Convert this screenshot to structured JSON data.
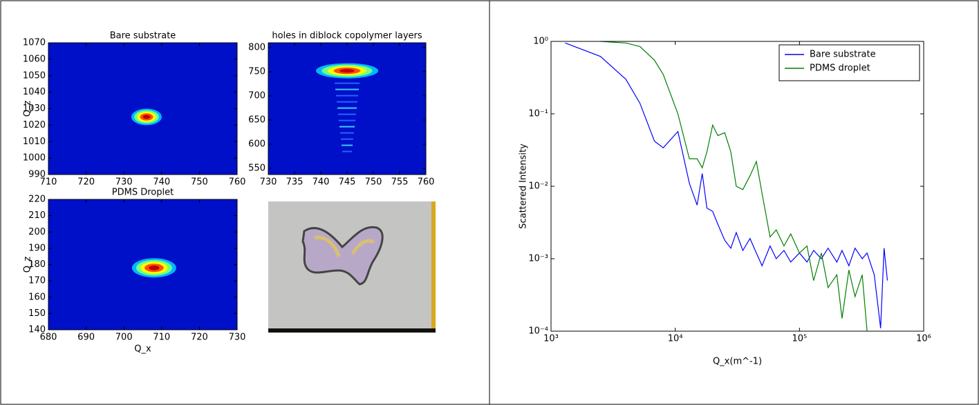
{
  "chart_data": [
    {
      "type": "heatmap",
      "title": "Bare substrate",
      "ylabel": "Q_z",
      "xlim": [
        710,
        760
      ],
      "xticks": [
        710,
        720,
        730,
        740,
        750,
        760
      ],
      "ylim": [
        990,
        1070
      ],
      "yticks": [
        990,
        1000,
        1010,
        1020,
        1030,
        1040,
        1050,
        1060,
        1070
      ],
      "peaks": [
        {
          "x": 736,
          "y": 1025
        }
      ]
    },
    {
      "type": "heatmap",
      "title": "holes in diblock copolymer layers",
      "xlim": [
        730,
        760
      ],
      "xticks": [
        730,
        735,
        740,
        745,
        750,
        755,
        760
      ],
      "ylim": [
        537,
        810
      ],
      "yticks": [
        550,
        600,
        650,
        700,
        750,
        800
      ],
      "peaks": [
        {
          "x": 745,
          "y": 752
        }
      ]
    },
    {
      "type": "heatmap",
      "title": "PDMS Droplet",
      "xlabel": "Q_x",
      "ylabel": "Q_z",
      "xlim": [
        680,
        730
      ],
      "xticks": [
        680,
        690,
        700,
        710,
        720,
        730
      ],
      "ylim": [
        140,
        220
      ],
      "yticks": [
        140,
        150,
        160,
        170,
        180,
        190,
        200,
        210,
        220
      ],
      "peaks": [
        {
          "x": 708,
          "y": 178
        }
      ]
    },
    {
      "type": "line",
      "xlabel": "Q_x(m^-1)",
      "ylabel": "Scattered Intensity",
      "log_x": true,
      "log_y": true,
      "legend": "upper right",
      "xlim": [
        1000,
        1000000
      ],
      "xticks": [
        {
          "value": 1000,
          "label": "10³"
        },
        {
          "value": 10000,
          "label": "10⁴"
        },
        {
          "value": 100000,
          "label": "10⁵"
        },
        {
          "value": 1000000,
          "label": "10⁶"
        }
      ],
      "ylim": [
        0.0001,
        1
      ],
      "yticks": [
        {
          "value": 0.0001,
          "label": "10⁻⁴"
        },
        {
          "value": 0.001,
          "label": "10⁻³"
        },
        {
          "value": 0.01,
          "label": "10⁻²"
        },
        {
          "value": 0.1,
          "label": "10⁻¹"
        },
        {
          "value": 1,
          "label": "10⁰"
        }
      ],
      "x": [
        1300,
        2500,
        4000,
        5200,
        6800,
        8000,
        10500,
        13000,
        15000,
        16500,
        18000,
        20000,
        22000,
        25000,
        28000,
        31000,
        35000,
        40000,
        45000,
        50000,
        58000,
        65000,
        75000,
        85000,
        100000,
        115000,
        130000,
        150000,
        170000,
        200000,
        220000,
        250000,
        280000,
        320000,
        350000,
        400000,
        450000,
        480000,
        510000
      ],
      "series": [
        {
          "name": "Bare substrate",
          "color": "#0000ff",
          "values": [
            0.95,
            0.62,
            0.3,
            0.14,
            0.042,
            0.034,
            0.057,
            0.011,
            0.0055,
            0.015,
            0.005,
            0.0045,
            0.003,
            0.0018,
            0.0014,
            0.0023,
            0.0013,
            0.0019,
            0.0012,
            0.0008,
            0.0015,
            0.001,
            0.0013,
            0.0009,
            0.0012,
            0.0009,
            0.0013,
            0.001,
            0.0014,
            0.0009,
            0.0013,
            0.0008,
            0.0014,
            0.001,
            0.0012,
            0.0006,
            0.00011,
            0.0014,
            0.0005
          ]
        },
        {
          "name": "PDMS droplet",
          "color": "#007f00",
          "values": [
            null,
            1.0,
            0.95,
            0.85,
            0.55,
            0.35,
            0.1,
            0.024,
            0.024,
            0.018,
            0.03,
            0.07,
            0.05,
            0.055,
            0.03,
            0.01,
            0.009,
            0.014,
            0.022,
            0.008,
            0.002,
            0.0025,
            0.0015,
            0.0022,
            0.0012,
            0.0015,
            0.0005,
            0.0012,
            0.0004,
            0.0006,
            0.00015,
            0.0007,
            0.0003,
            0.0006,
            0.0001,
            null,
            null,
            null,
            null
          ]
        }
      ]
    }
  ]
}
